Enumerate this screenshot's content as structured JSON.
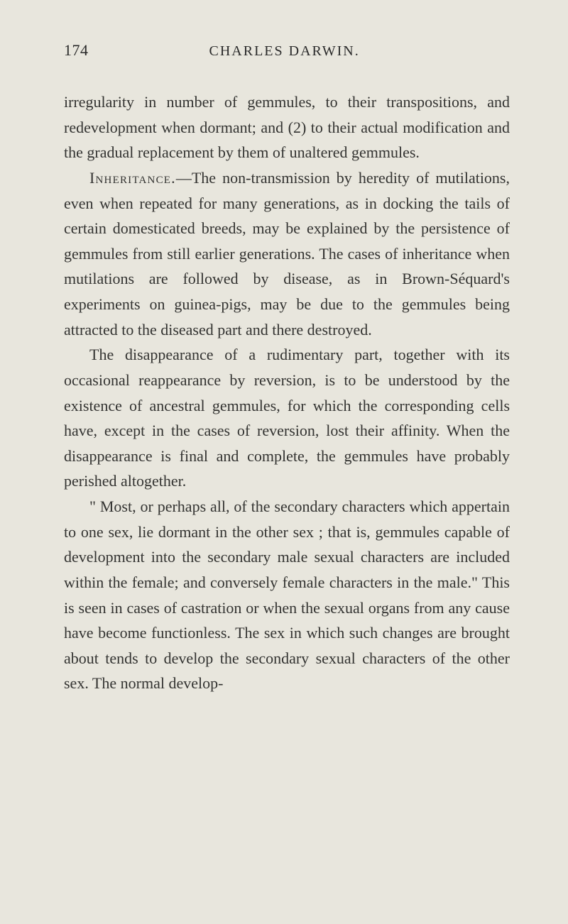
{
  "page": {
    "number": "174",
    "running_title": "CHARLES DARWIN.",
    "background_color": "#e8e6dd",
    "text_color": "#333331",
    "font_family": "Georgia, 'Times New Roman', serif",
    "body_fontsize": 22,
    "line_height": 1.62,
    "text_indent": 36
  },
  "paragraphs": {
    "p1": "irregularity in number of gemmules, to their trans­positions, and redevelopment when dormant; and (2) to their actual modification and the gradual replace­ment by them of unaltered gemmules.",
    "p2_lead": "Inheritance.",
    "p2_rest": "—The non-transmission by heredity of mutilations, even when repeated for many genera­tions, as in docking the tails of certain domesticated breeds, may be explained by the persistence of gem­mules from still earlier generations. The cases of inheritance when mutilations are followed by disease, as in Brown-Séquard's experiments on guinea-pigs, may be due to the gemmules being attracted to the diseased part and there destroyed.",
    "p3": "The disappearance of a rudimentary part, together with its occasional reappearance by reversion, is to be understood by the existence of ancestral gemmules, for which the corresponding cells have, except in the cases of reversion, lost their affinity. When the disappearance is final and complete, the gemmules have probably perished altogether.",
    "p4": "\" Most, or perhaps all, of the secondary characters which appertain to one sex, lie dormant in the other sex ; that is, gemmules capable of development into the secondary male sexual characters are included within the female; and conversely female characters in the male.\" This is seen in cases of castration or when the sexual organs from any cause have become functionless. The sex in which such changes are brought about tends to develop the secondary sexual characters of the other sex. The normal develop-"
  }
}
